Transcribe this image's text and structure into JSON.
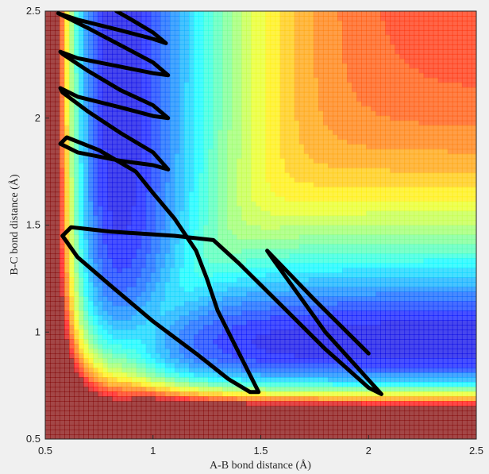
{
  "chart_data": {
    "type": "contour",
    "xlabel": "A-B bond distance (Å)",
    "ylabel": "B-C bond distance (Å)",
    "xlim": [
      0.5,
      2.5
    ],
    "ylim": [
      0.5,
      2.5
    ],
    "xticks": [
      0.5,
      1,
      1.5,
      2,
      2.5
    ],
    "yticks": [
      0.5,
      1,
      1.5,
      2,
      2.5
    ],
    "series": [
      {
        "color": "#000000",
        "x": [
          2.0,
          1.75,
          1.53,
          1.55,
          1.8,
          2.06,
          2.0,
          1.8,
          1.6,
          1.4,
          1.28,
          1.1,
          0.8,
          0.62,
          0.58,
          0.65,
          0.8,
          1.0,
          1.2,
          1.35,
          1.45,
          1.49,
          1.4,
          1.3,
          1.25,
          1.2,
          1.1,
          1.0,
          0.92,
          0.75,
          0.6,
          0.57,
          0.65,
          0.85,
          1.0,
          1.07,
          1.0,
          0.85,
          0.7,
          0.58,
          0.57,
          0.65,
          0.85,
          1.0,
          1.07,
          1.0,
          0.85,
          0.7,
          0.58,
          0.57,
          0.65,
          0.85,
          1.0,
          1.07,
          1.0,
          0.85,
          0.7,
          0.58,
          0.56,
          0.65,
          0.85,
          1.0,
          1.06,
          1.0,
          0.9,
          0.83
        ],
        "y": [
          0.9,
          1.15,
          1.38,
          1.35,
          1.0,
          0.71,
          0.74,
          0.92,
          1.12,
          1.32,
          1.43,
          1.45,
          1.47,
          1.49,
          1.45,
          1.35,
          1.22,
          1.05,
          0.9,
          0.78,
          0.72,
          0.72,
          0.9,
          1.1,
          1.25,
          1.38,
          1.53,
          1.65,
          1.75,
          1.85,
          1.91,
          1.88,
          1.84,
          1.8,
          1.78,
          1.76,
          1.84,
          1.93,
          2.03,
          2.12,
          2.14,
          2.1,
          2.05,
          2.01,
          2.0,
          2.06,
          2.13,
          2.22,
          2.3,
          2.31,
          2.28,
          2.24,
          2.21,
          2.2,
          2.26,
          2.34,
          2.42,
          2.48,
          2.49,
          2.46,
          2.41,
          2.37,
          2.35,
          2.4,
          2.46,
          2.5
        ]
      }
    ]
  }
}
